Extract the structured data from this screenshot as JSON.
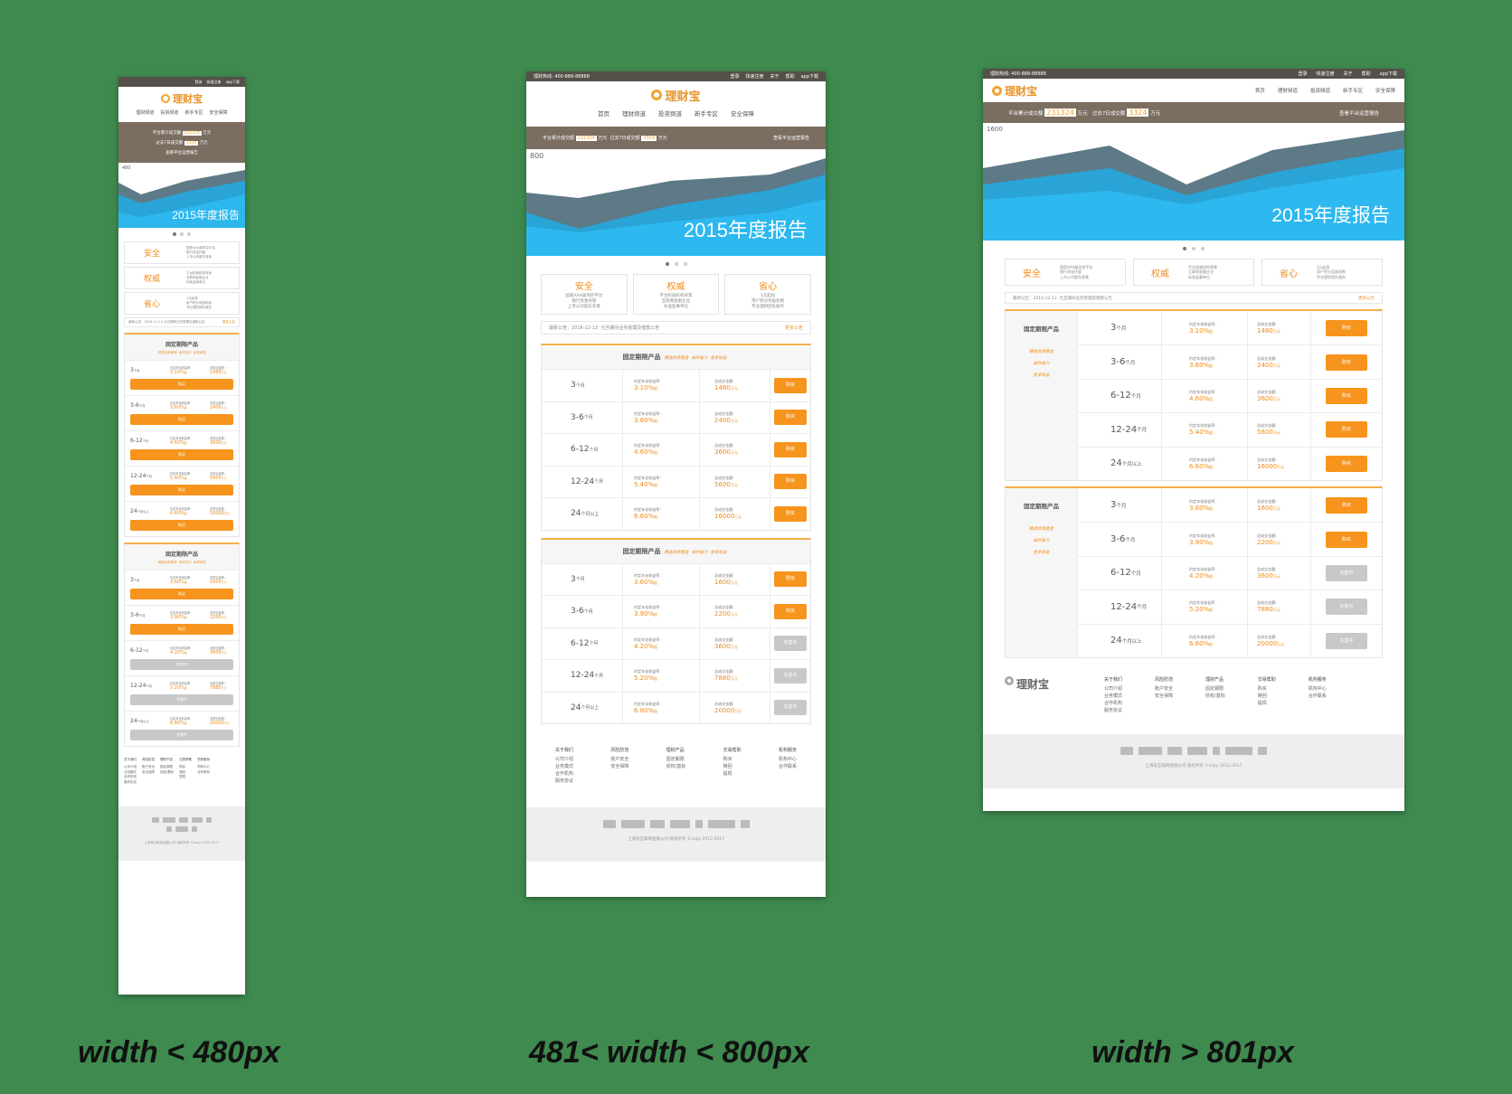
{
  "hotline": "理财热线: 400-888-88888",
  "top_links": [
    "登录",
    "快速注册",
    "关于",
    "帮助",
    "app下载"
  ],
  "brand": "理财宝",
  "nav": [
    "首页",
    "理财频道",
    "投资频道",
    "新手专区",
    "安全保障"
  ],
  "stats": {
    "total_label": "平台累计成交额",
    "total_value": "231324",
    "unit": "万元",
    "week_label": "过去7日成交额",
    "week_value": "3324",
    "report_link": "查看平台运营报告"
  },
  "banner": {
    "title": "2015年度报告",
    "max_small": "480",
    "max_medium": "800",
    "max_large": "1600"
  },
  "features": [
    {
      "title": "安全",
      "desc": [
        "国家AAA级风控平台",
        "银行资金托管",
        "上市公司股东背景"
      ]
    },
    {
      "title": "权威",
      "desc": [
        "平台权威机构背景",
        "互联网金融企业",
        "标准监事单位"
      ]
    },
    {
      "title": "省心",
      "desc": [
        "1元起投",
        "用户积分奖励机制",
        "专业理财团队服务"
      ]
    }
  ],
  "notice": {
    "date": "最新公告：2016-12-13",
    "text": "元旦期间业务受理及借款公告",
    "more": "更多公告"
  },
  "sections": [
    {
      "title": "固定期限产品",
      "tags": [
        "精选优质基金",
        "省时省力",
        "坐享收益"
      ],
      "rows": [
        {
          "term": "3",
          "unit": "个月",
          "rate_label": "约定年化收益率:",
          "rate": "3.10%",
          "rate_unit": "起",
          "amt_label": "总成交金额:",
          "amt": "1480",
          "amt_unit": "万元",
          "btn": "购买",
          "active": true
        },
        {
          "term": "3-6",
          "unit": "个月",
          "rate_label": "约定年化收益率:",
          "rate": "3.60%",
          "rate_unit": "起",
          "amt_label": "总成交金额:",
          "amt": "2400",
          "amt_unit": "万元",
          "btn": "购买",
          "active": true
        },
        {
          "term": "6-12",
          "unit": "个月",
          "rate_label": "约定年化收益率:",
          "rate": "4.60%",
          "rate_unit": "起",
          "amt_label": "总成交金额:",
          "amt": "3600",
          "amt_unit": "万元",
          "btn": "购买",
          "active": true
        },
        {
          "term": "12-24",
          "unit": "个月",
          "rate_label": "约定年化收益率:",
          "rate": "5.40%",
          "rate_unit": "起",
          "amt_label": "总成交金额:",
          "amt": "5600",
          "amt_unit": "万元",
          "btn": "购买",
          "active": true
        },
        {
          "term": "24",
          "unit": "个月以上",
          "rate_label": "约定年化收益率:",
          "rate": "6.60%",
          "rate_unit": "起",
          "amt_label": "总成交金额:",
          "amt": "16000",
          "amt_unit": "万元",
          "btn": "购买",
          "active": true
        }
      ]
    },
    {
      "title": "固定期限产品",
      "tags": [
        "精选优质基金",
        "省时省力",
        "坐享收益"
      ],
      "rows": [
        {
          "term": "3",
          "unit": "个月",
          "rate_label": "约定年化收益率:",
          "rate": "3.60%",
          "rate_unit": "起",
          "amt_label": "总成交金额:",
          "amt": "1600",
          "amt_unit": "万元",
          "btn": "购买",
          "active": true
        },
        {
          "term": "3-6",
          "unit": "个月",
          "rate_label": "约定年化收益率:",
          "rate": "3.90%",
          "rate_unit": "起",
          "amt_label": "总成交金额:",
          "amt": "2200",
          "amt_unit": "万元",
          "btn": "购买",
          "active": true
        },
        {
          "term": "6-12",
          "unit": "个月",
          "rate_label": "约定年化收益率:",
          "rate": "4.20%",
          "rate_unit": "起",
          "amt_label": "总成交金额:",
          "amt": "3600",
          "amt_unit": "万元",
          "btn": "先售中",
          "active": false
        },
        {
          "term": "12-24",
          "unit": "个月",
          "rate_label": "约定年化收益率:",
          "rate": "5.20%",
          "rate_unit": "起",
          "amt_label": "总成交金额:",
          "amt": "7880",
          "amt_unit": "万元",
          "btn": "先售中",
          "active": false
        },
        {
          "term": "24",
          "unit": "个月以上",
          "rate_label": "约定年化收益率:",
          "rate": "6.80%",
          "rate_unit": "起",
          "amt_label": "总成交金额:",
          "amt": "20000",
          "amt_unit": "万元",
          "btn": "先售中",
          "active": false
        }
      ]
    }
  ],
  "footer_cols": [
    {
      "title": "关于我们",
      "items": [
        "公司介绍",
        "业务模式",
        "合作机构",
        "服务协议"
      ]
    },
    {
      "title": "风险防范",
      "items": [
        "账户安全",
        "安全保障"
      ]
    },
    {
      "title": "理财产品",
      "items": [
        "固定期限",
        "债权/基标"
      ]
    },
    {
      "title": "交易帮助",
      "items": [
        "购买",
        "赎回",
        "提现"
      ]
    },
    {
      "title": "机构服务",
      "items": [
        "机构中心",
        "合作联系"
      ]
    }
  ],
  "copyright": "上海某互联网金融公司 版权所有 ©copy 2012-2017",
  "captions": {
    "small": "width < 480px",
    "medium": "481< width < 800px",
    "large": "width > 801px"
  }
}
